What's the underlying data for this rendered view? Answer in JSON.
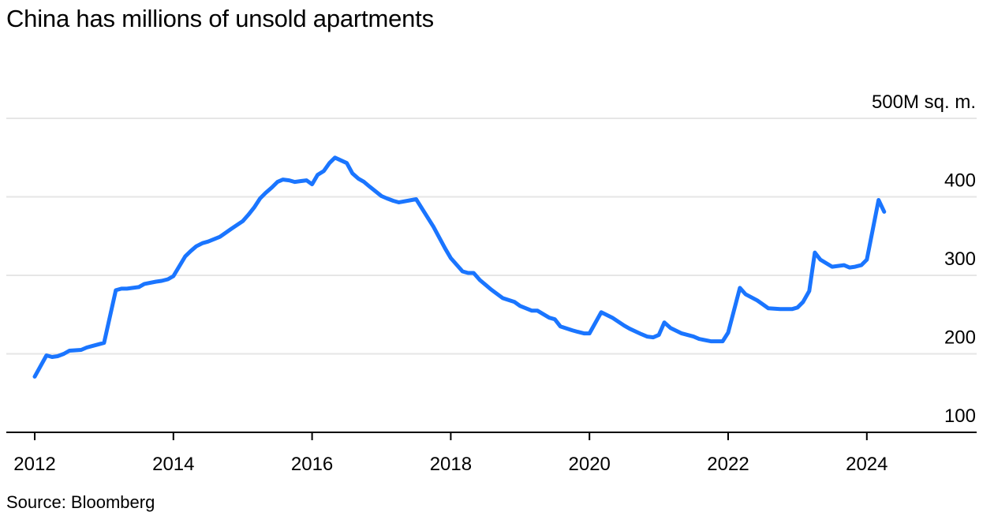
{
  "title": "China has millions of unsold apartments",
  "source": "Source: Bloomberg",
  "chart_data": {
    "type": "line",
    "y_unit_label": "500M sq. m.",
    "yticks": [
      100,
      200,
      300,
      400,
      500
    ],
    "ylim": [
      100,
      500
    ],
    "xticks": [
      2012,
      2014,
      2016,
      2018,
      2020,
      2022,
      2024
    ],
    "xlim": [
      2012,
      2025.7
    ],
    "grid": true,
    "line_color": "#1a75ff",
    "series": [
      {
        "x": [
          2012.0,
          2012.17,
          2012.25,
          2012.33,
          2012.42,
          2012.5,
          2012.67,
          2012.75,
          2012.83,
          2013.0,
          2013.17,
          2013.25,
          2013.33,
          2013.5,
          2013.58,
          2013.75,
          2013.83,
          2013.92,
          2014.0,
          2014.17,
          2014.25,
          2014.33,
          2014.42,
          2014.5,
          2014.67,
          2014.75,
          2014.83,
          2015.0,
          2015.08,
          2015.17,
          2015.25,
          2015.33,
          2015.42,
          2015.5,
          2015.58,
          2015.67,
          2015.75,
          2015.83,
          2015.92,
          2016.0,
          2016.08,
          2016.17,
          2016.25,
          2016.33,
          2016.5,
          2016.58,
          2016.67,
          2016.75,
          2016.83,
          2017.0,
          2017.08,
          2017.17,
          2017.25,
          2017.5,
          2017.75,
          2017.92,
          2018.0,
          2018.17,
          2018.25,
          2018.33,
          2018.42,
          2018.5,
          2018.58,
          2018.75,
          2018.92,
          2019.0,
          2019.17,
          2019.25,
          2019.42,
          2019.5,
          2019.58,
          2019.75,
          2019.83,
          2019.92,
          2020.0,
          2020.17,
          2020.33,
          2020.5,
          2020.58,
          2020.75,
          2020.83,
          2020.92,
          2021.0,
          2021.08,
          2021.17,
          2021.33,
          2021.5,
          2021.58,
          2021.75,
          2021.92,
          2022.0,
          2022.17,
          2022.25,
          2022.42,
          2022.5,
          2022.58,
          2022.75,
          2022.92,
          2023.0,
          2023.08,
          2023.17,
          2023.25,
          2023.33,
          2023.5,
          2023.67,
          2023.75,
          2023.83,
          2023.92,
          2024.0,
          2024.17,
          2024.25
        ],
        "y": [
          171,
          198,
          196,
          197,
          200,
          204,
          205,
          208,
          210,
          214,
          281,
          283,
          283,
          285,
          289,
          292,
          293,
          295,
          299,
          324,
          331,
          337,
          341,
          343,
          349,
          354,
          359,
          369,
          377,
          387,
          398,
          405,
          412,
          419,
          422,
          421,
          419,
          420,
          421,
          416,
          428,
          433,
          443,
          450,
          443,
          430,
          423,
          419,
          413,
          401,
          398,
          395,
          393,
          397,
          362,
          334,
          322,
          305,
          303,
          303,
          294,
          288,
          282,
          271,
          266,
          261,
          255,
          255,
          246,
          244,
          235,
          230,
          228,
          226,
          226,
          253,
          246,
          236,
          232,
          225,
          222,
          221,
          224,
          240,
          233,
          226,
          222,
          219,
          216,
          216,
          227,
          284,
          276,
          268,
          263,
          258,
          257,
          257,
          259,
          266,
          280,
          329,
          320,
          311,
          313,
          310,
          311,
          313,
          320,
          396,
          381
        ]
      }
    ]
  }
}
